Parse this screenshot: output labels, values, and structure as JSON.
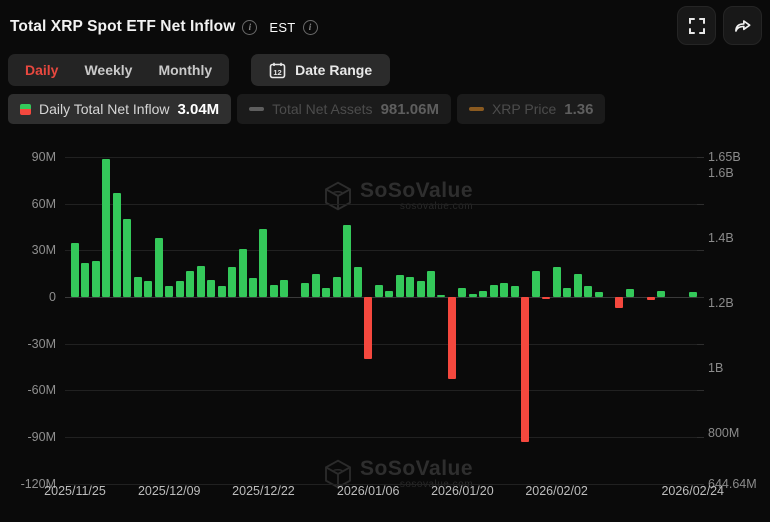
{
  "header": {
    "title": "Total XRP Spot ETF Net Inflow",
    "est_label": "EST",
    "info_glyph": "i"
  },
  "toolbar": {
    "tabs": [
      {
        "label": "Daily",
        "active": true
      },
      {
        "label": "Weekly",
        "active": false
      },
      {
        "label": "Monthly",
        "active": false
      }
    ],
    "date_range_label": "Date Range",
    "calendar_day": "12"
  },
  "legend": [
    {
      "label": "Daily Total Net Inflow",
      "value": "3.04M",
      "active": true,
      "marker": "green-red-split-square"
    },
    {
      "label": "Total Net Assets",
      "value": "981.06M",
      "active": false,
      "marker": "gray-dash"
    },
    {
      "label": "XRP Price",
      "value": "1.36",
      "active": false,
      "marker": "orange-dash"
    }
  ],
  "watermark": {
    "brand": "SoSoValue",
    "domain": "sosovalue.com"
  },
  "colors": {
    "positive": "#34c85a",
    "negative": "#f5483e",
    "accent_red": "#e8483f",
    "gray_dash": "#5e5e5e",
    "orange_dash": "#8a5a20",
    "background": "#0a0a0a"
  },
  "chart_data": {
    "type": "bar",
    "title": "Total XRP Spot ETF Net Inflow (Daily)",
    "unit": "M USD",
    "values": [
      35,
      22,
      23,
      89,
      67,
      50,
      13,
      10,
      38,
      7,
      10,
      17,
      20,
      11,
      7,
      19,
      31,
      12,
      44,
      8,
      11,
      0,
      9,
      15,
      6,
      13,
      46,
      19,
      -40,
      8,
      4,
      14,
      13,
      10,
      17,
      1,
      -53,
      6,
      2,
      4,
      8,
      9,
      7,
      -93,
      17,
      -1,
      19,
      6,
      15,
      7,
      3,
      0,
      -7,
      5,
      0,
      -2,
      4,
      0,
      0,
      3.04
    ],
    "x_tick_labels": [
      "2025/11/25",
      "2025/12/09",
      "2025/12/22",
      "2026/01/06",
      "2026/01/20",
      "2026/02/02",
      "2026/02/24"
    ],
    "x_tick_indices": [
      0,
      9,
      18,
      28,
      37,
      46,
      59
    ],
    "left_axis": {
      "labels": [
        "90M",
        "60M",
        "30M",
        "0",
        "-30M",
        "-60M",
        "-90M",
        "-120M"
      ],
      "ticks_m": [
        90,
        60,
        30,
        0,
        -30,
        -60,
        -90,
        -120
      ],
      "range_m": [
        -120,
        90
      ]
    },
    "right_axis": {
      "labels": [
        "1.65B",
        "1.6B",
        "1.4B",
        "1.2B",
        "1B",
        "800M",
        "644.64M"
      ],
      "values_m": [
        1650,
        1600,
        1400,
        1200,
        1000,
        800,
        644.64
      ],
      "range_m": [
        644.64,
        1650
      ]
    },
    "grid": true,
    "legend_position": "top",
    "latest_daily_net_inflow": "3.04M",
    "latest_total_net_assets": "981.06M",
    "latest_xrp_price": "1.36"
  }
}
